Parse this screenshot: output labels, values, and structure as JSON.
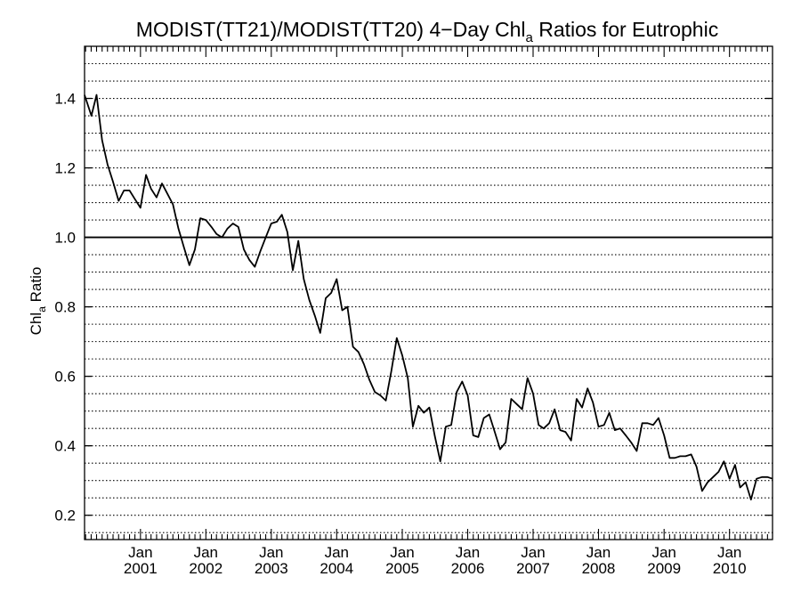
{
  "chart_data": {
    "type": "line",
    "title": "MODIST(TT21)/MODIST(TT20) 4−Day Chl",
    "title_subscript": "a",
    "title_suffix": " Ratios for Eutrophic",
    "ylabel": "Chl",
    "ylabel_subscript": "a",
    "ylabel_suffix": " Ratio",
    "ylim": [
      0.13,
      1.55
    ],
    "xlim": [
      "2000-02-24",
      "2010-08-29"
    ],
    "yticks": [
      0.2,
      0.4,
      0.6,
      0.8,
      1.0,
      1.2,
      1.4
    ],
    "ytick_labels": [
      "0.2",
      "0.4",
      "0.6",
      "0.8",
      "1.0",
      "1.2",
      "1.4"
    ],
    "xticks": [
      {
        "date": "2001-01-01",
        "month": "Jan",
        "year": "2001"
      },
      {
        "date": "2002-01-01",
        "month": "Jan",
        "year": "2002"
      },
      {
        "date": "2003-01-01",
        "month": "Jan",
        "year": "2003"
      },
      {
        "date": "2004-01-01",
        "month": "Jan",
        "year": "2004"
      },
      {
        "date": "2005-01-01",
        "month": "Jan",
        "year": "2005"
      },
      {
        "date": "2006-01-01",
        "month": "Jan",
        "year": "2006"
      },
      {
        "date": "2007-01-01",
        "month": "Jan",
        "year": "2007"
      },
      {
        "date": "2008-01-01",
        "month": "Jan",
        "year": "2008"
      },
      {
        "date": "2009-01-01",
        "month": "Jan",
        "year": "2009"
      },
      {
        "date": "2010-01-01",
        "month": "Jan",
        "year": "2010"
      }
    ],
    "grid": "horizontal dotted every 0.05",
    "reference_line": 1.0,
    "series": [
      {
        "x": [
          "2000-02-24",
          "2000-04-02",
          "2000-05-01",
          "2000-06-01",
          "2000-07-01",
          "2000-08-01",
          "2000-09-01",
          "2000-10-01",
          "2000-11-01",
          "2000-12-01",
          "2001-01-01",
          "2001-02-01",
          "2001-03-01",
          "2001-04-01",
          "2001-05-01",
          "2001-06-01",
          "2001-07-01",
          "2001-08-01",
          "2001-09-01",
          "2001-10-01",
          "2001-11-01",
          "2001-12-01",
          "2002-01-01",
          "2002-02-01",
          "2002-03-01",
          "2002-04-01",
          "2002-05-01",
          "2002-06-01",
          "2002-07-01",
          "2002-08-01",
          "2002-09-01",
          "2002-10-01",
          "2002-11-01",
          "2002-12-01",
          "2003-01-01",
          "2003-02-01",
          "2003-03-01",
          "2003-04-01",
          "2003-05-01",
          "2003-06-01",
          "2003-07-01",
          "2003-08-01",
          "2003-09-01",
          "2003-10-01",
          "2003-11-01",
          "2003-12-01",
          "2004-01-01",
          "2004-02-01",
          "2004-03-01",
          "2004-04-01",
          "2004-05-01",
          "2004-06-01",
          "2004-07-01",
          "2004-08-01",
          "2004-09-01",
          "2004-10-01",
          "2004-11-01",
          "2004-12-01",
          "2005-01-01",
          "2005-02-01",
          "2005-03-01",
          "2005-04-01",
          "2005-05-01",
          "2005-06-01",
          "2005-07-01",
          "2005-08-01",
          "2005-09-01",
          "2005-10-01",
          "2005-11-01",
          "2005-12-01",
          "2006-01-01",
          "2006-02-01",
          "2006-03-01",
          "2006-04-01",
          "2006-05-01",
          "2006-06-01",
          "2006-07-01",
          "2006-08-01",
          "2006-09-01",
          "2006-10-01",
          "2006-11-01",
          "2006-12-01",
          "2007-01-01",
          "2007-02-01",
          "2007-03-01",
          "2007-04-01",
          "2007-05-01",
          "2007-06-01",
          "2007-07-01",
          "2007-08-01",
          "2007-09-01",
          "2007-10-01",
          "2007-11-01",
          "2007-12-01",
          "2008-01-01",
          "2008-02-01",
          "2008-03-01",
          "2008-04-01",
          "2008-05-01",
          "2008-06-01",
          "2008-07-01",
          "2008-08-01",
          "2008-09-01",
          "2008-10-01",
          "2008-11-01",
          "2008-12-01",
          "2009-01-01",
          "2009-02-01",
          "2009-03-01",
          "2009-04-01",
          "2009-05-01",
          "2009-06-01",
          "2009-07-01",
          "2009-08-01",
          "2009-09-01",
          "2009-10-01",
          "2009-11-01",
          "2009-12-01",
          "2010-01-01",
          "2010-02-01",
          "2010-03-01",
          "2010-04-01",
          "2010-05-01",
          "2010-06-01",
          "2010-07-01",
          "2010-08-01",
          "2010-08-29"
        ],
        "values": [
          1.41,
          1.35,
          1.41,
          1.28,
          1.21,
          1.16,
          1.105,
          1.135,
          1.135,
          1.11,
          1.085,
          1.18,
          1.14,
          1.115,
          1.155,
          1.125,
          1.095,
          1.025,
          0.97,
          0.92,
          0.965,
          1.055,
          1.05,
          1.03,
          1.01,
          1.0,
          1.025,
          1.04,
          1.03,
          0.965,
          0.935,
          0.915,
          0.96,
          1.0,
          1.04,
          1.045,
          1.065,
          1.015,
          0.905,
          0.99,
          0.88,
          0.82,
          0.775,
          0.725,
          0.825,
          0.84,
          0.88,
          0.79,
          0.8,
          0.685,
          0.67,
          0.635,
          0.59,
          0.555,
          0.545,
          0.53,
          0.615,
          0.71,
          0.66,
          0.595,
          0.455,
          0.515,
          0.495,
          0.51,
          0.43,
          0.355,
          0.455,
          0.46,
          0.555,
          0.585,
          0.545,
          0.43,
          0.425,
          0.48,
          0.49,
          0.44,
          0.39,
          0.41,
          0.535,
          0.52,
          0.505,
          0.595,
          0.55,
          0.46,
          0.45,
          0.465,
          0.505,
          0.445,
          0.44,
          0.415,
          0.535,
          0.51,
          0.565,
          0.525,
          0.455,
          0.46,
          0.495,
          0.445,
          0.45,
          0.43,
          0.41,
          0.385,
          0.465,
          0.465,
          0.46,
          0.48,
          0.43,
          0.365,
          0.365,
          0.37,
          0.37,
          0.375,
          0.34,
          0.27,
          0.295,
          0.31,
          0.325,
          0.355,
          0.305,
          0.345,
          0.28,
          0.295,
          0.245,
          0.305,
          0.31,
          0.31,
          0.305
        ]
      }
    ]
  }
}
